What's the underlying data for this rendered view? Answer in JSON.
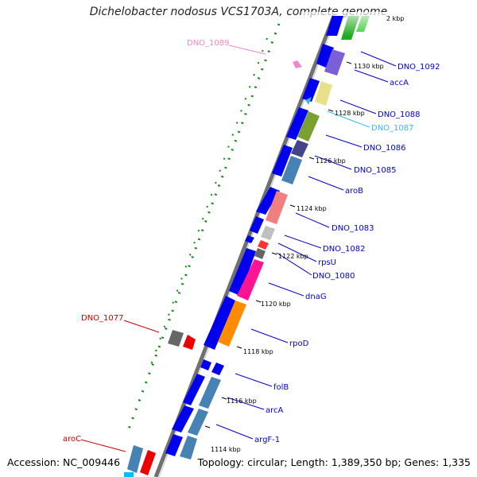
{
  "title": "Dichelobacter nodosus VCS1703A, complete genome",
  "footer": {
    "accession": "Accession: NC_009446",
    "summary": "Topology: circular; Length: 1,389,350 bp; Genes: 1,335"
  },
  "ticks": [
    {
      "id": "t1114",
      "label": "1114 kbp"
    },
    {
      "id": "t1116",
      "label": "1116 kbp"
    },
    {
      "id": "t1118",
      "label": "1118 kbp"
    },
    {
      "id": "t1120",
      "label": "1120 kbp"
    },
    {
      "id": "t1122",
      "label": "1122 kbp"
    },
    {
      "id": "t1124",
      "label": "1124 kbp"
    },
    {
      "id": "t1126",
      "label": "1126 kbp"
    },
    {
      "id": "t1128",
      "label": "1128 kbp"
    },
    {
      "id": "t1130",
      "label": "1130 kbp"
    },
    {
      "id": "t1132",
      "label": "2 kbp"
    }
  ],
  "gene_labels": [
    {
      "id": "DNO_1092",
      "label": "DNO_1092",
      "color": "#0000cc"
    },
    {
      "id": "accA",
      "label": "accA",
      "color": "#0000cc"
    },
    {
      "id": "DNO_1088",
      "label": "DNO_1088",
      "color": "#0000cc"
    },
    {
      "id": "DNO_1087",
      "label": "DNO_1087",
      "color": "#33bbee"
    },
    {
      "id": "DNO_1086",
      "label": "DNO_1086",
      "color": "#0000cc"
    },
    {
      "id": "DNO_1085",
      "label": "DNO_1085",
      "color": "#0000cc"
    },
    {
      "id": "aroB",
      "label": "aroB",
      "color": "#0000cc"
    },
    {
      "id": "DNO_1083",
      "label": "DNO_1083",
      "color": "#0000cc"
    },
    {
      "id": "DNO_1082",
      "label": "DNO_1082",
      "color": "#0000cc"
    },
    {
      "id": "rpsU",
      "label": "rpsU",
      "color": "#0000cc"
    },
    {
      "id": "DNO_1080",
      "label": "DNO_1080",
      "color": "#0000cc"
    },
    {
      "id": "dnaG",
      "label": "dnaG",
      "color": "#0000cc"
    },
    {
      "id": "rpoD",
      "label": "rpoD",
      "color": "#0000cc"
    },
    {
      "id": "folB",
      "label": "folB",
      "color": "#0000cc"
    },
    {
      "id": "arcA",
      "label": "arcA",
      "color": "#0000cc"
    },
    {
      "id": "argF-1",
      "label": "argF-1",
      "color": "#0000cc"
    },
    {
      "id": "DNO_1089",
      "label": "DNO_1089",
      "color": "#ee88cc"
    },
    {
      "id": "DNO_1077",
      "label": "DNO_1077",
      "color": "#cc0000"
    },
    {
      "id": "aroC",
      "label": "aroC",
      "color": "#cc0000"
    }
  ],
  "colors": {
    "backbone": "#707070",
    "cds_forward": "#0000ee",
    "cds_reverse": "#ee0000",
    "label_line": "#0000cc",
    "gc_dots": "#118811"
  }
}
